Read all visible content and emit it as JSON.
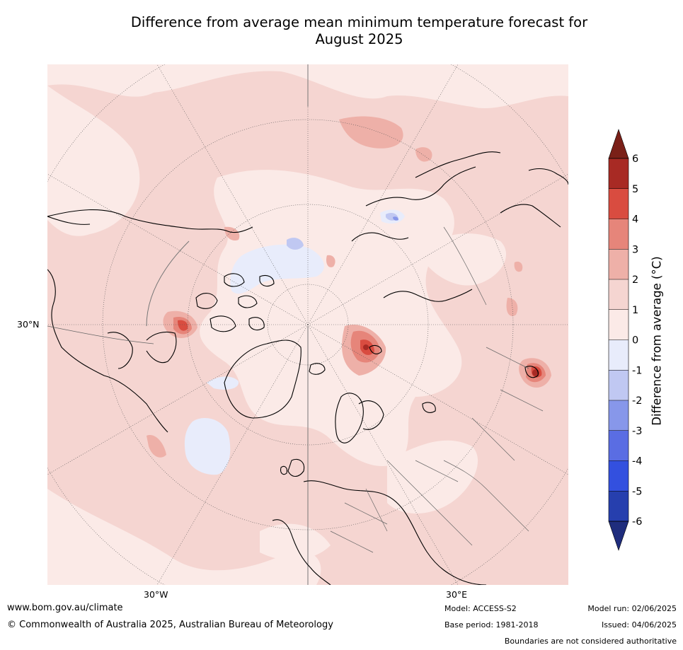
{
  "title_line1": "Difference from average mean minimum temperature forecast for",
  "title_line2": "August 2025",
  "labels": {
    "lat_30n": "30°N",
    "lon_30w": "30°W",
    "lon_30e": "30°E"
  },
  "colorbar": {
    "title": "Difference from average (°C)",
    "ticks": [
      "6",
      "5",
      "4",
      "3",
      "2",
      "1",
      "0",
      "-1",
      "-2",
      "-3",
      "-4",
      "-5",
      "-6"
    ],
    "colors": {
      "above_6": "#7a2018",
      "5_6": "#a82a24",
      "4_5": "#d94c40",
      "3_4": "#e6857a",
      "2_3": "#eeb0a8",
      "1_2": "#f5d5d1",
      "0_1": "#fbeae7",
      "m1_0": "#e8ecfb",
      "m2_m1": "#c0c8f2",
      "m3_m2": "#8797ea",
      "m4_m3": "#5a6de3",
      "m5_m4": "#3350df",
      "m6_m5": "#263fae",
      "below_m6": "#1f2d7d"
    }
  },
  "footer": {
    "website": "www.bom.gov.au/climate",
    "copyright": "© Commonwealth of Australia 2025, Australian Bureau of Meteorology",
    "model": "Model: ACCESS-S2",
    "base_period": "Base period: 1981-2018",
    "model_run": "Model run: 02/06/2025",
    "issued": "Issued: 04/06/2025",
    "disclaimer": "Boundaries are not considered authoritative"
  }
}
